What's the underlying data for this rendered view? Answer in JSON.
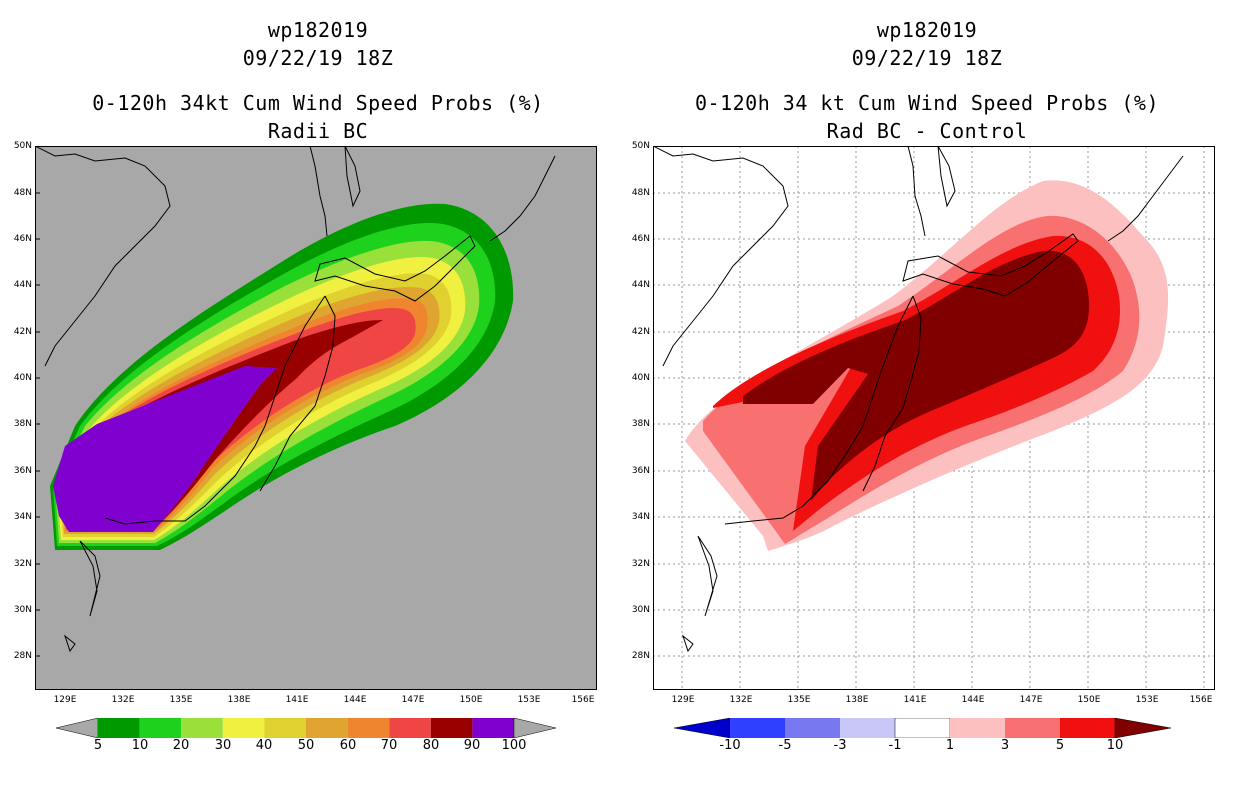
{
  "left_panel": {
    "storm_id": "wp182019",
    "datetime": "09/22/19 18Z",
    "title": "0-120h 34kt Cum Wind Speed Probs (%)",
    "subtitle": "Radii BC",
    "colorbar_labels": [
      "5",
      "10",
      "20",
      "30",
      "40",
      "50",
      "60",
      "70",
      "80",
      "90",
      "100"
    ],
    "colorbar_colors": [
      "#009900",
      "#1dd11d",
      "#99e03a",
      "#f0f040",
      "#e0d030",
      "#e0a530",
      "#f08530",
      "#f04545",
      "#990000",
      "#8000d0"
    ]
  },
  "right_panel": {
    "storm_id": "wp182019",
    "datetime": "09/22/19 18Z",
    "title": "0-120h 34 kt Cum Wind Speed Probs (%)",
    "subtitle": "Rad BC - Control",
    "colorbar_labels": [
      "-10",
      "-5",
      "-3",
      "-1",
      "1",
      "3",
      "5",
      "10"
    ],
    "colorbar_colors": [
      "#0000cc",
      "#3040ff",
      "#7878f0",
      "#c8c8f8",
      "#ffffff",
      "#fcc0c0",
      "#f87070",
      "#f01010",
      "#800000"
    ]
  },
  "map_axes": {
    "lat_labels": [
      "50N",
      "48N",
      "46N",
      "44N",
      "42N",
      "40N",
      "38N",
      "36N",
      "34N",
      "32N",
      "30N",
      "28N"
    ],
    "lon_labels": [
      "129E",
      "132E",
      "135E",
      "138E",
      "141E",
      "144E",
      "147E",
      "150E",
      "153E",
      "156E"
    ],
    "lat_range": [
      26.5,
      50
    ],
    "lon_range": [
      127.5,
      156.5
    ]
  },
  "colors": {
    "land_bg_left": "#a8a8a8",
    "map_bg_right": "#ffffff",
    "coast": "#000000",
    "grid": "#9a9a9a"
  }
}
